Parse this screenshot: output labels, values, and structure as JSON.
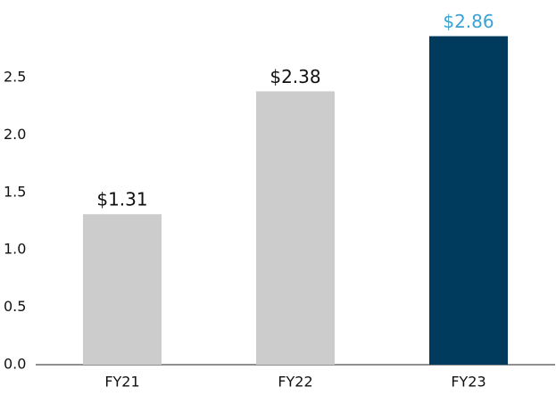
{
  "chart_data": {
    "type": "bar",
    "categories": [
      "FY21",
      "FY22",
      "FY23"
    ],
    "values": [
      1.31,
      2.38,
      2.86
    ],
    "value_labels": [
      "$1.31",
      "$2.38",
      "$2.86"
    ],
    "colors": [
      "#cccccc",
      "#cccccc",
      "#003a5d"
    ],
    "value_label_colors": [
      "#111111",
      "#111111",
      "#3aa3d4"
    ],
    "ylim": [
      0,
      3.175
    ],
    "yticks": [
      {
        "value": 0,
        "label": "0.0"
      },
      0.5,
      {
        "value": 1,
        "label": "1.0"
      },
      1.5,
      {
        "value": 2,
        "label": "2.0"
      },
      2.5
    ],
    "grid": false
  }
}
